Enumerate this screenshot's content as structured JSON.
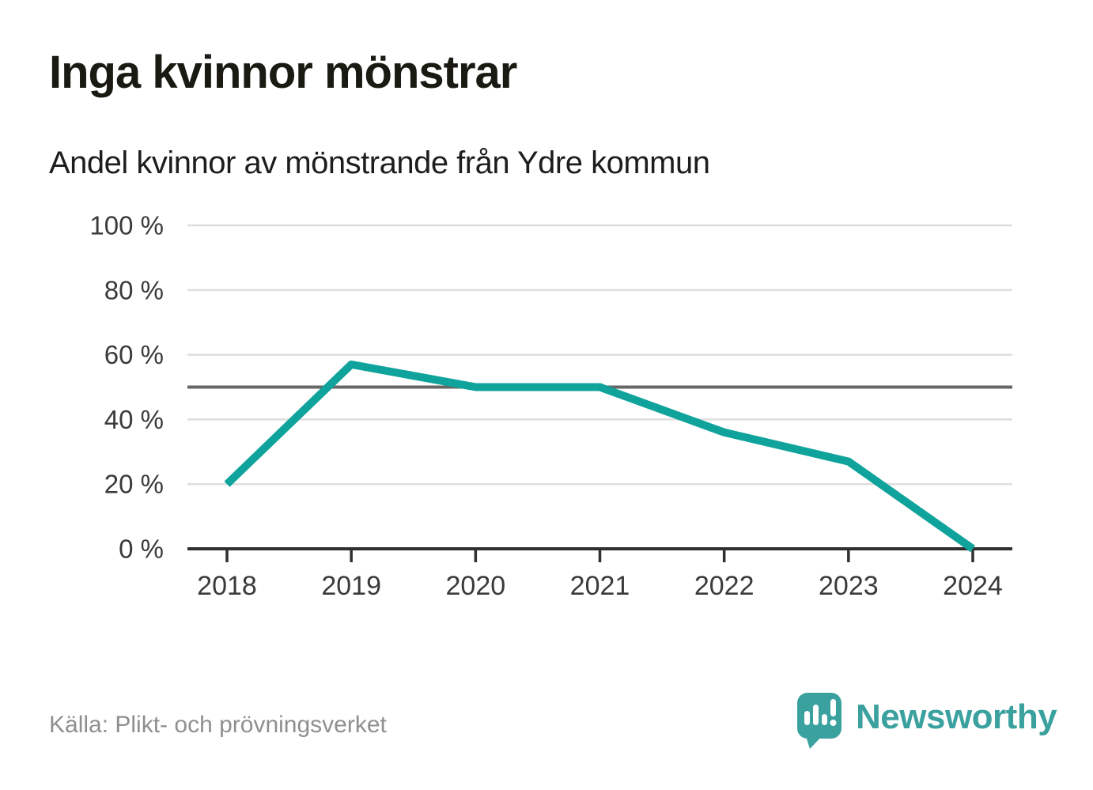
{
  "title": "Inga kvinnor mönstrar",
  "subtitle": "Andel kvinnor av mönstrande från Ydre kommun",
  "source": "Källa: Plikt- och prövningsverket",
  "brand": {
    "name": "Newsworthy"
  },
  "colors": {
    "line": "#0fa39c",
    "grid": "#dedede",
    "reference_line": "#666666",
    "axis": "#2f2f2f",
    "tick_text": "#3a3a3a",
    "title_text": "#1a1a13",
    "subtitle_text": "#1d1d1d",
    "source_text": "#8f8f8f",
    "brand_teal": "#3ba19f",
    "logo_glyph": "#ffffff"
  },
  "chart_data": {
    "type": "line",
    "title": "Inga kvinnor mönstrar",
    "subtitle": "Andel kvinnor av mönstrande från Ydre kommun",
    "x": [
      "2018",
      "2019",
      "2020",
      "2021",
      "2022",
      "2023",
      "2024"
    ],
    "series": [
      {
        "name": "Andel kvinnor av mönstrande (%)",
        "values": [
          20,
          57,
          50,
          50,
          36,
          27,
          0
        ]
      }
    ],
    "ylim": [
      0,
      100
    ],
    "yticks": [
      {
        "value": 0,
        "label": "0 %"
      },
      {
        "value": 20,
        "label": "20 %"
      },
      {
        "value": 40,
        "label": "40 %"
      },
      {
        "value": 60,
        "label": "60 %"
      },
      {
        "value": 80,
        "label": "80 %"
      },
      {
        "value": 100,
        "label": "100 %"
      }
    ],
    "reference_line_y": 50,
    "grid": true,
    "legend": false,
    "source": "Källa: Plikt- och prövningsverket"
  }
}
